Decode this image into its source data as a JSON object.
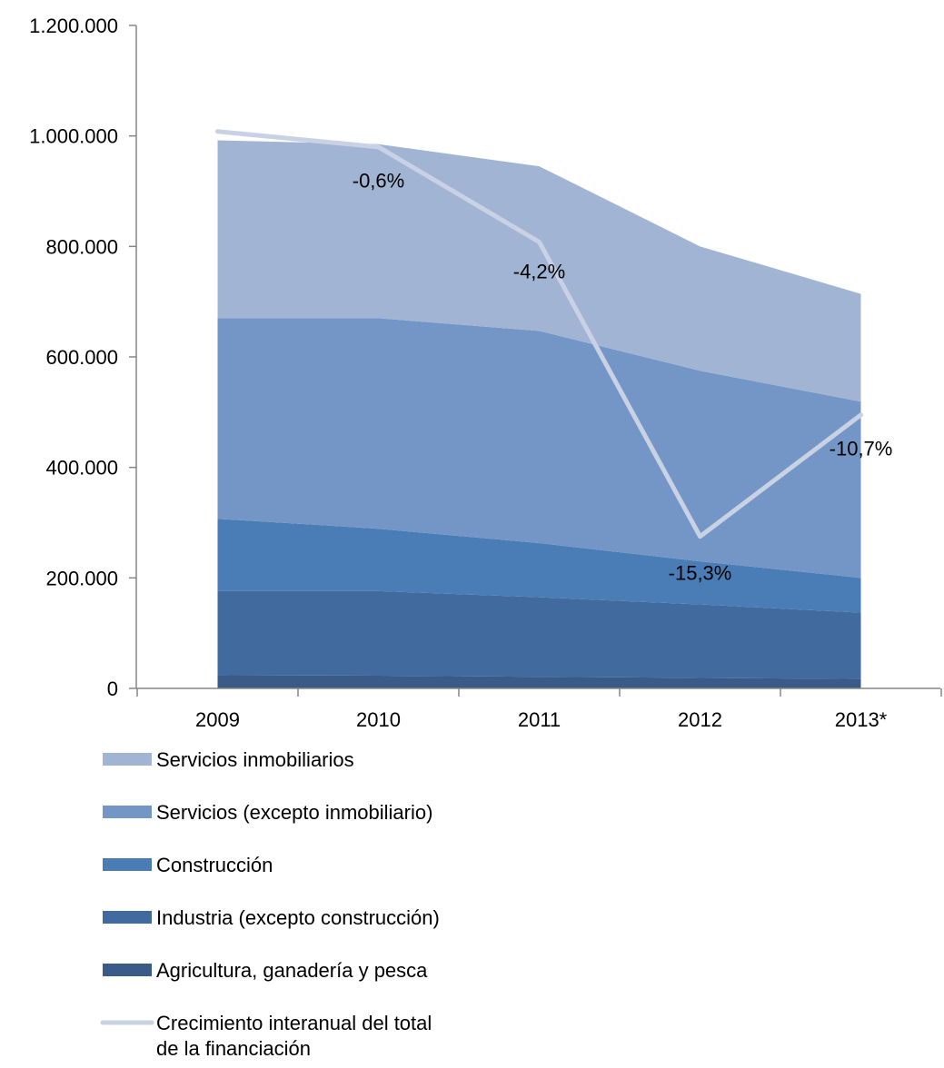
{
  "chart_data": {
    "type": "area",
    "title": "",
    "xlabel": "",
    "ylabel": "",
    "categories": [
      "2009",
      "2010",
      "2011",
      "2012",
      "2013*"
    ],
    "ylim": [
      0,
      1200000
    ],
    "y_ticks": [
      0,
      200000,
      400000,
      600000,
      800000,
      1000000,
      1200000
    ],
    "y_tick_labels": [
      "0",
      "200.000",
      "400.000",
      "600.000",
      "800.000",
      "1.000.000",
      "1.200.000"
    ],
    "stacked": true,
    "series": [
      {
        "name": "Agricultura, ganadería y pesca",
        "values": [
          24000,
          23000,
          21000,
          19000,
          17000
        ],
        "color": "#3A5A88"
      },
      {
        "name": "Industria (excepto construcción)",
        "values": [
          152000,
          153000,
          144000,
          133000,
          120000
        ],
        "color": "#416A9E"
      },
      {
        "name": "Construcción",
        "values": [
          131000,
          113000,
          98000,
          78000,
          63000
        ],
        "color": "#4A7CB6"
      },
      {
        "name": "Servicios (excepto inmobiliario)",
        "values": [
          363000,
          381000,
          384000,
          345000,
          319000
        ],
        "color": "#7396C6"
      },
      {
        "name": "Servicios inmobiliarios",
        "values": [
          322000,
          315000,
          298000,
          225000,
          195000
        ],
        "color": "#A1B4D4"
      }
    ],
    "line_series": {
      "name": "Crecimiento interanual del total de la financiación",
      "color": "#C9D2E5",
      "position_values": [
        1008000,
        980000,
        808000,
        275000,
        495000
      ]
    },
    "annotations": [
      {
        "text": "-0,6%",
        "category": "2010",
        "y": 920000
      },
      {
        "text": "-4,2%",
        "category": "2011",
        "y": 755000
      },
      {
        "text": "-15,3%",
        "category": "2012",
        "y": 210000
      },
      {
        "text": "-10,7%",
        "category": "2013*",
        "y": 435000
      }
    ],
    "legend": {
      "placement": "bottom-left",
      "order": [
        "Servicios inmobiliarios",
        "Servicios (excepto inmobiliario)",
        "Construcción",
        "Industria (excepto construcción)",
        "Agricultura, ganadería y pesca",
        "Crecimiento interanual del total de la financiación"
      ],
      "line_label_lines": [
        "Crecimiento interanual del total",
        "de la financiación"
      ]
    },
    "grid": false
  }
}
